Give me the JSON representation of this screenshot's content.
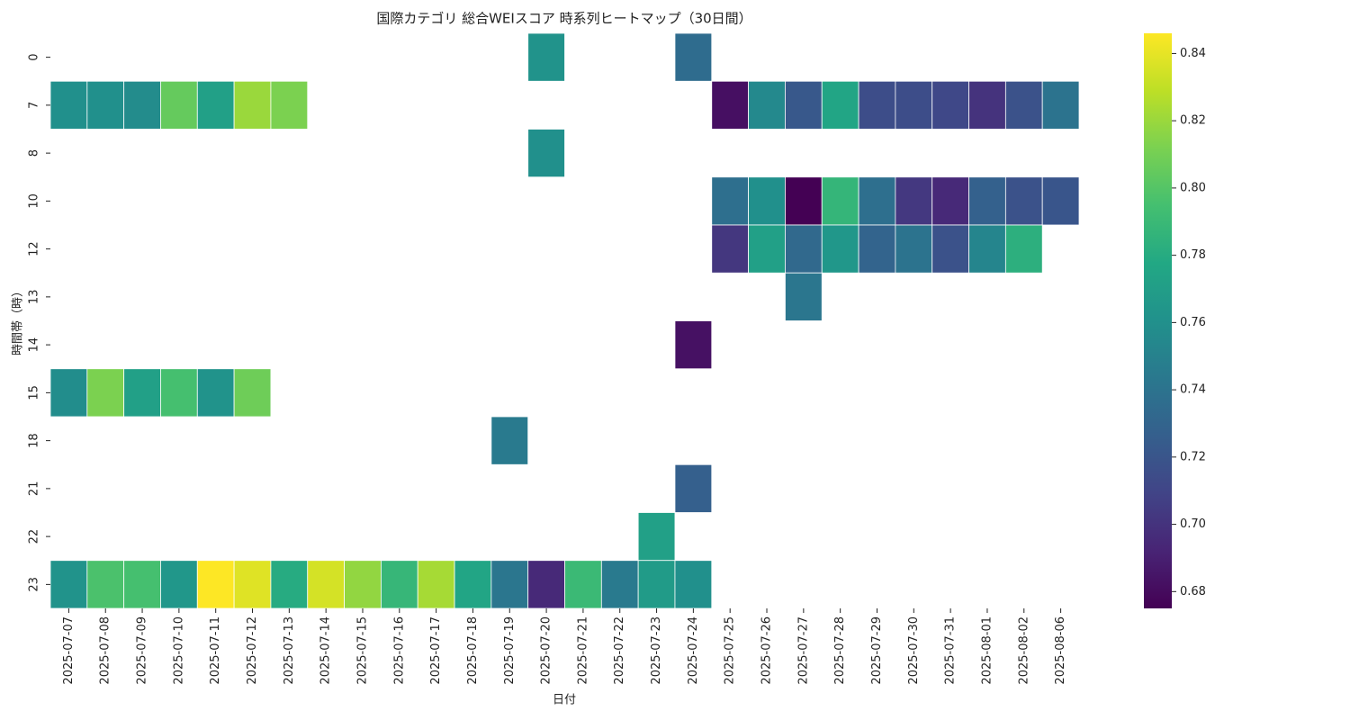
{
  "chart_data": {
    "type": "heatmap",
    "title": "国際カテゴリ 総合WEIスコア 時系列ヒートマップ（30日間）",
    "x_label": "日付",
    "y_label": "時間帯（時）",
    "colormap": "viridis",
    "categories": [
      "2025-07-07",
      "2025-07-08",
      "2025-07-09",
      "2025-07-10",
      "2025-07-11",
      "2025-07-12",
      "2025-07-13",
      "2025-07-14",
      "2025-07-15",
      "2025-07-16",
      "2025-07-17",
      "2025-07-18",
      "2025-07-19",
      "2025-07-20",
      "2025-07-21",
      "2025-07-22",
      "2025-07-23",
      "2025-07-24",
      "2025-07-25",
      "2025-07-26",
      "2025-07-27",
      "2025-07-28",
      "2025-07-29",
      "2025-07-30",
      "2025-07-31",
      "2025-08-01",
      "2025-08-02",
      "2025-08-06"
    ],
    "y_categories": [
      "0",
      "7",
      "8",
      "10",
      "12",
      "13",
      "14",
      "15",
      "18",
      "21",
      "22",
      "23"
    ],
    "values": [
      [
        null,
        null,
        null,
        null,
        null,
        null,
        null,
        null,
        null,
        null,
        null,
        null,
        null,
        0.762,
        null,
        null,
        null,
        0.735,
        null,
        null,
        null,
        null,
        null,
        null,
        null,
        null,
        null,
        null
      ],
      [
        0.76,
        0.76,
        0.757,
        0.805,
        0.772,
        0.82,
        0.812,
        null,
        null,
        null,
        null,
        null,
        null,
        null,
        null,
        null,
        null,
        null,
        0.682,
        0.755,
        0.722,
        0.775,
        0.715,
        0.715,
        0.712,
        0.7,
        0.718,
        0.74
      ],
      [
        null,
        null,
        null,
        null,
        null,
        null,
        null,
        null,
        null,
        null,
        null,
        null,
        null,
        0.76,
        null,
        null,
        null,
        null,
        null,
        null,
        null,
        null,
        null,
        null,
        null,
        null,
        null,
        null
      ],
      [
        null,
        null,
        null,
        null,
        null,
        null,
        null,
        null,
        null,
        null,
        null,
        null,
        null,
        null,
        null,
        null,
        null,
        null,
        0.737,
        0.76,
        0.675,
        0.787,
        0.737,
        0.703,
        0.695,
        0.728,
        0.718,
        0.72
      ],
      [
        null,
        null,
        null,
        null,
        null,
        null,
        null,
        null,
        null,
        null,
        null,
        null,
        null,
        null,
        null,
        null,
        null,
        null,
        0.702,
        0.772,
        0.733,
        0.765,
        0.73,
        0.74,
        0.718,
        0.752,
        0.783,
        null
      ],
      [
        null,
        null,
        null,
        null,
        null,
        null,
        null,
        null,
        null,
        null,
        null,
        null,
        null,
        null,
        null,
        null,
        null,
        null,
        null,
        null,
        0.742,
        null,
        null,
        null,
        null,
        null,
        null,
        null
      ],
      [
        null,
        null,
        null,
        null,
        null,
        null,
        null,
        null,
        null,
        null,
        null,
        null,
        null,
        null,
        null,
        null,
        null,
        0.683,
        null,
        null,
        null,
        null,
        null,
        null,
        null,
        null,
        null,
        null
      ],
      [
        0.758,
        0.812,
        0.772,
        0.795,
        0.762,
        0.808,
        null,
        null,
        null,
        null,
        null,
        null,
        null,
        null,
        null,
        null,
        null,
        null,
        null,
        null,
        null,
        null,
        null,
        null,
        null,
        null,
        null,
        null
      ],
      [
        null,
        null,
        null,
        null,
        null,
        null,
        null,
        null,
        null,
        null,
        null,
        null,
        0.745,
        null,
        null,
        null,
        null,
        null,
        null,
        null,
        null,
        null,
        null,
        null,
        null,
        null,
        null,
        null
      ],
      [
        null,
        null,
        null,
        null,
        null,
        null,
        null,
        null,
        null,
        null,
        null,
        null,
        null,
        null,
        null,
        null,
        null,
        0.727,
        null,
        null,
        null,
        null,
        null,
        null,
        null,
        null,
        null,
        null
      ],
      [
        null,
        null,
        null,
        null,
        null,
        null,
        null,
        null,
        null,
        null,
        null,
        null,
        null,
        null,
        null,
        null,
        0.772,
        null,
        null,
        null,
        null,
        null,
        null,
        null,
        null,
        null,
        null,
        null
      ],
      [
        0.762,
        0.797,
        0.795,
        0.765,
        0.846,
        0.838,
        0.78,
        0.835,
        0.818,
        0.788,
        0.823,
        0.775,
        0.742,
        0.695,
        0.79,
        0.745,
        0.768,
        0.76,
        null,
        null,
        null,
        null,
        null,
        null,
        null,
        null,
        null,
        null
      ]
    ],
    "clim": [
      0.675,
      0.846
    ],
    "cticks": [
      0.68,
      {
        "value": 0.7,
        "label": "0.70"
      },
      0.72,
      0.74,
      0.76,
      0.78,
      {
        "value": 0.8,
        "label": "0.80"
      },
      0.82,
      0.84
    ]
  }
}
